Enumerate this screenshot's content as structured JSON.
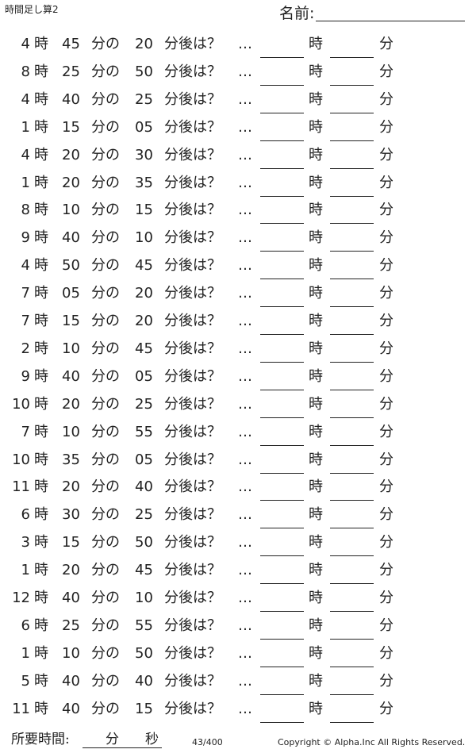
{
  "header": {
    "title": "時間足し算2",
    "name_label": "名前:"
  },
  "labels": {
    "hour": "時",
    "minute_of": "分の",
    "after": "分後は？",
    "ellipsis": "…",
    "answer_hour": "時",
    "answer_minute": "分"
  },
  "rows": [
    [
      "4",
      "45",
      "20"
    ],
    [
      "8",
      "25",
      "50"
    ],
    [
      "4",
      "40",
      "25"
    ],
    [
      "1",
      "15",
      "05"
    ],
    [
      "4",
      "20",
      "30"
    ],
    [
      "1",
      "20",
      "35"
    ],
    [
      "8",
      "10",
      "15"
    ],
    [
      "9",
      "40",
      "10"
    ],
    [
      "4",
      "50",
      "45"
    ],
    [
      "7",
      "05",
      "20"
    ],
    [
      "7",
      "15",
      "20"
    ],
    [
      "2",
      "10",
      "45"
    ],
    [
      "9",
      "40",
      "05"
    ],
    [
      "10",
      "20",
      "25"
    ],
    [
      "7",
      "10",
      "55"
    ],
    [
      "10",
      "35",
      "05"
    ],
    [
      "11",
      "20",
      "40"
    ],
    [
      "6",
      "30",
      "25"
    ],
    [
      "3",
      "15",
      "50"
    ],
    [
      "1",
      "20",
      "45"
    ],
    [
      "12",
      "40",
      "10"
    ],
    [
      "6",
      "25",
      "55"
    ],
    [
      "1",
      "10",
      "50"
    ],
    [
      "5",
      "40",
      "40"
    ],
    [
      "11",
      "40",
      "15"
    ]
  ],
  "footer": {
    "time_label": "所要時間:",
    "minutes": "分",
    "seconds": "秒",
    "page": "43/400",
    "copyright": "Copyright ©  Alpha.Inc All Rights Reserved."
  }
}
